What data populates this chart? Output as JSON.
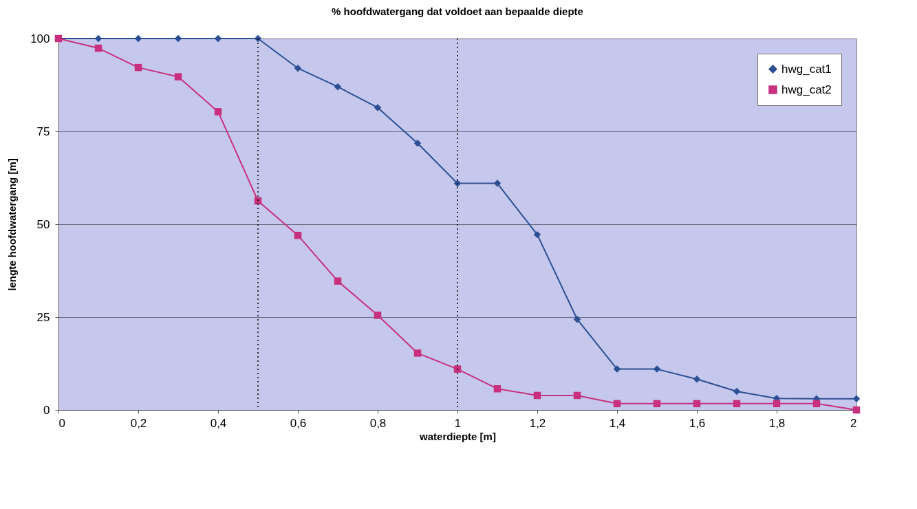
{
  "chart_data": {
    "type": "line",
    "title": "% hoofdwatergang dat voldoet aan bepaalde diepte",
    "xlabel": "waterdiepte [m]",
    "ylabel": "lengte hoofdwatergang [m]",
    "x": [
      0,
      0.1,
      0.2,
      0.3,
      0.4,
      0.5,
      0.6,
      0.7,
      0.8,
      0.9,
      1,
      1.1,
      1.2,
      1.3,
      1.4,
      1.5,
      1.6,
      1.7,
      1.8,
      1.9,
      2
    ],
    "series": [
      {
        "name": "hwg_cat1",
        "color": "#2c4f94",
        "marker": "diamond",
        "values": [
          100,
          100,
          100,
          100,
          100,
          100,
          92,
          87,
          81.4,
          71.8,
          61,
          61,
          47.2,
          24.4,
          11,
          11,
          8.3,
          5,
          3.1,
          3,
          3
        ]
      },
      {
        "name": "hwg_cat2",
        "color": "#c8307f",
        "marker": "square",
        "values": [
          100,
          97.4,
          92.2,
          89.7,
          80.3,
          56.3,
          47,
          34.7,
          25.5,
          15.3,
          11,
          5.7,
          3.9,
          3.9,
          1.7,
          1.7,
          1.7,
          1.7,
          1.7,
          1.7,
          0
        ]
      }
    ],
    "xlim": [
      0,
      2
    ],
    "xticks": [
      {
        "value": 0,
        "label": "0"
      },
      {
        "value": 0.2,
        "label": "0,2"
      },
      {
        "value": 0.4,
        "label": "0,4"
      },
      {
        "value": 0.6,
        "label": "0,6"
      },
      {
        "value": 0.8,
        "label": "0,8"
      },
      {
        "value": 1,
        "label": "1"
      },
      {
        "value": 1.2,
        "label": "1,2"
      },
      {
        "value": 1.4,
        "label": "1,4"
      },
      {
        "value": 1.6,
        "label": "1,6"
      },
      {
        "value": 1.8,
        "label": "1,8"
      },
      {
        "value": 2,
        "label": "2"
      }
    ],
    "ylim": [
      0,
      100
    ],
    "yticks": [
      0,
      25,
      50,
      75,
      100
    ],
    "grid": "y",
    "legend": "top right",
    "line_style": "solid",
    "ref_lines": [
      {
        "axis": "x",
        "value": 0.5,
        "color": "#000000",
        "line_style": "dotted"
      },
      {
        "axis": "x",
        "value": 1,
        "color": "#000000",
        "line_style": "dotted"
      }
    ]
  }
}
